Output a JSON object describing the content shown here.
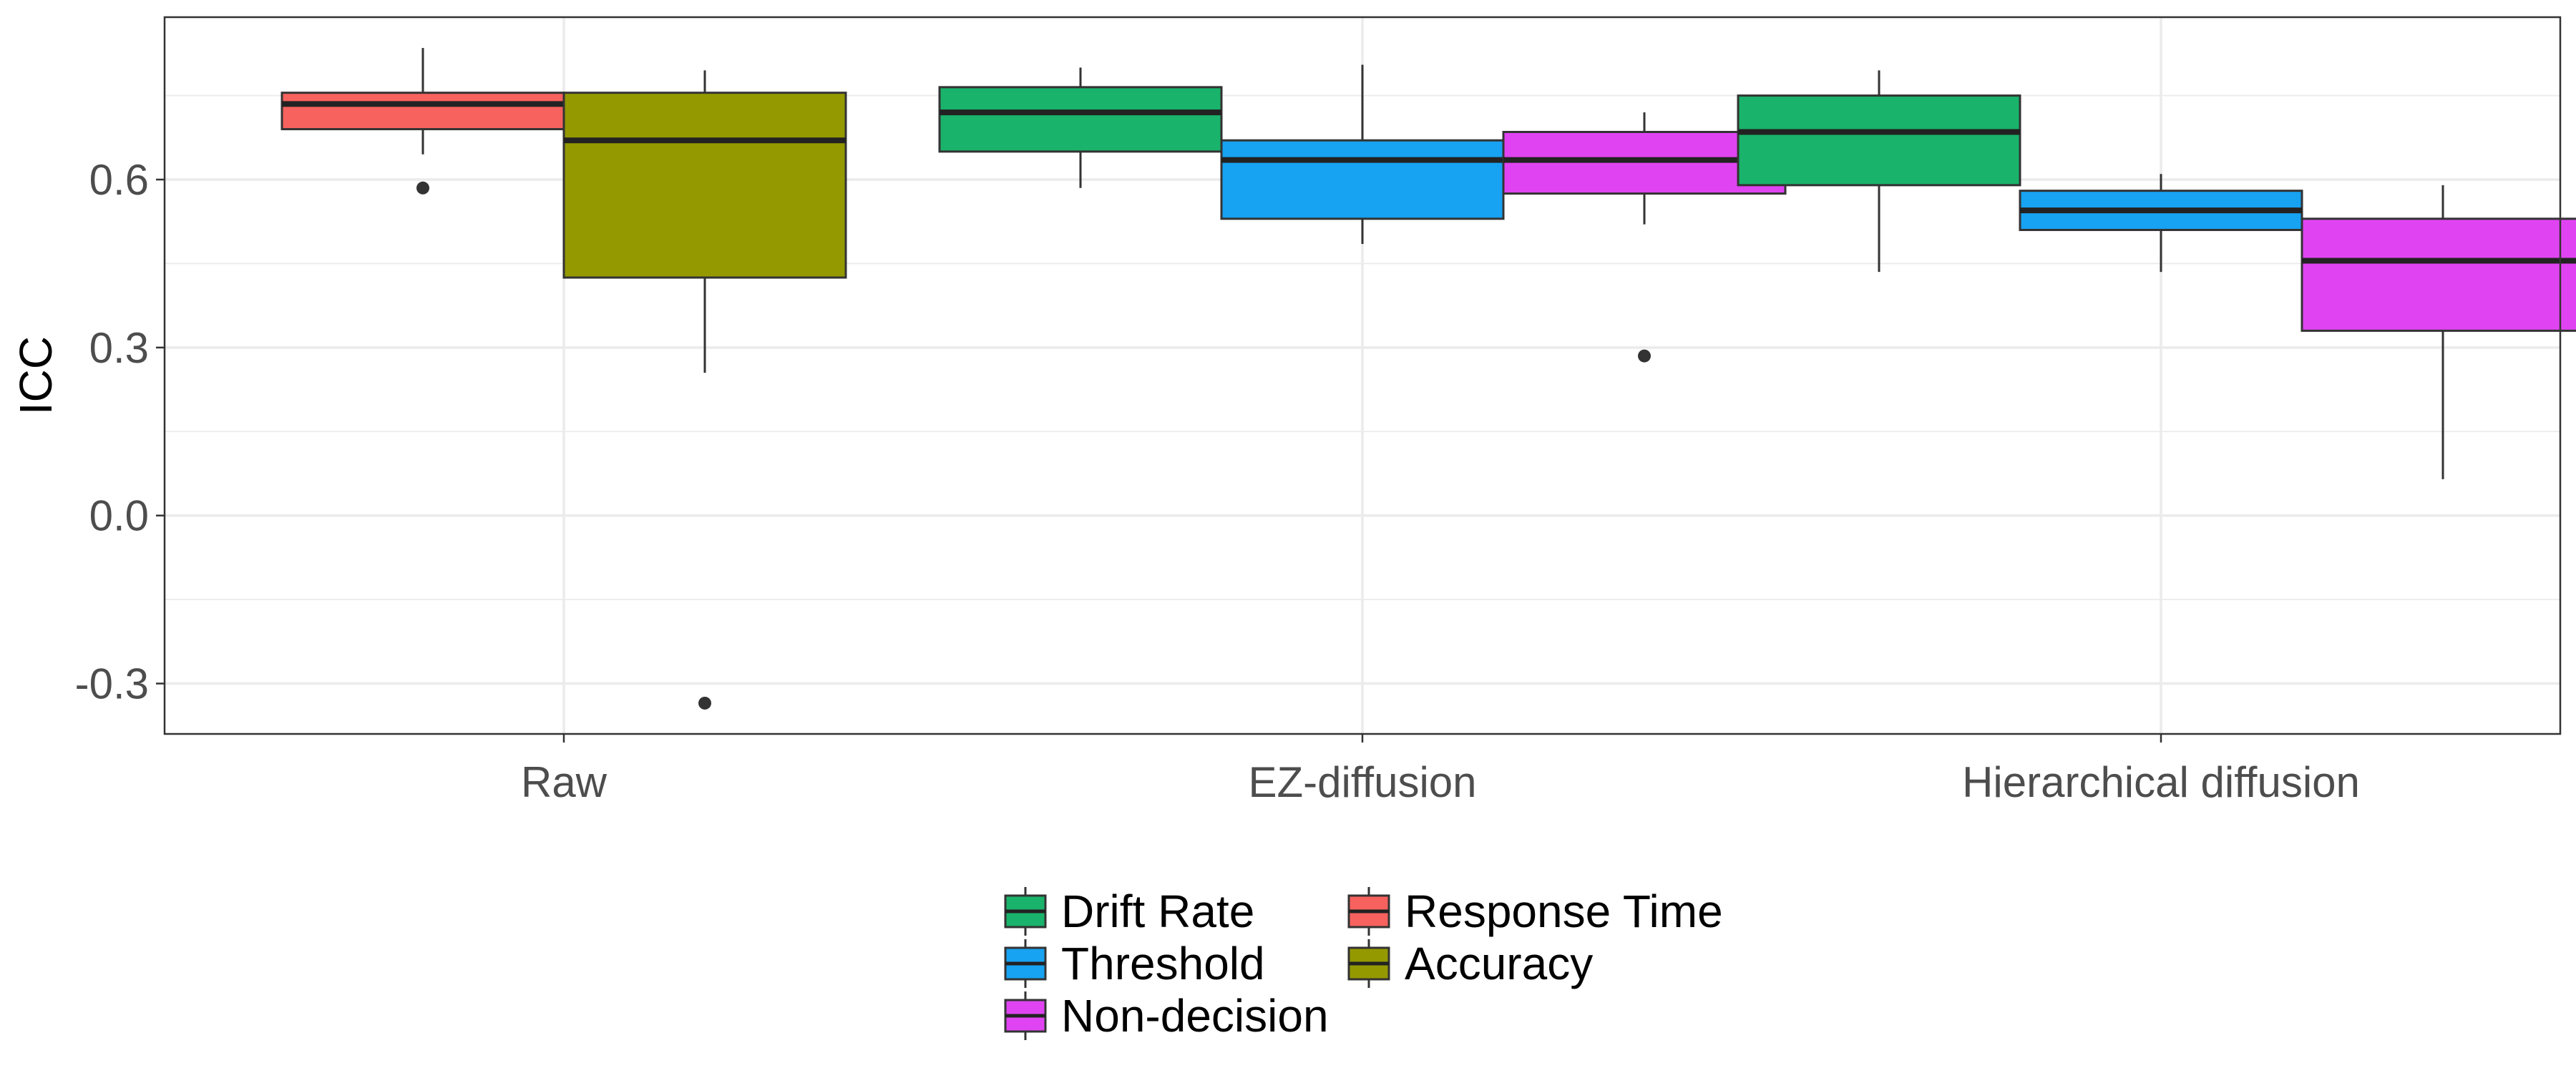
{
  "chart_data": {
    "type": "boxplot",
    "title": "",
    "xlabel": "",
    "ylabel": "ICC",
    "ylim": [
      -0.39,
      0.89
    ],
    "yticks": [
      -0.3,
      0.0,
      0.3,
      0.6
    ],
    "ytick_labels": [
      "-0.3",
      "0.0",
      "0.3",
      "0.6"
    ],
    "grid": true,
    "legend_position": "bottom",
    "categories": [
      "Raw",
      "EZ-diffusion",
      "Hierarchical diffusion"
    ],
    "series": [
      {
        "name": "Drift Rate",
        "color": "#1ab36b"
      },
      {
        "name": "Threshold",
        "color": "#17a2f2"
      },
      {
        "name": "Non-decision",
        "color": "#e044f2"
      },
      {
        "name": "Response Time",
        "color": "#f7625e"
      },
      {
        "name": "Accuracy",
        "color": "#949900"
      }
    ],
    "legend_rows": [
      [
        "Drift Rate",
        "Response Time"
      ],
      [
        "Threshold",
        "Accuracy"
      ],
      [
        "Non-decision"
      ]
    ],
    "boxes": [
      {
        "category": "Raw",
        "series": "Response Time",
        "whisker_low": 0.645,
        "q1": 0.69,
        "median": 0.735,
        "q3": 0.755,
        "whisker_high": 0.835,
        "outliers": [
          0.585
        ]
      },
      {
        "category": "Raw",
        "series": "Accuracy",
        "whisker_low": 0.255,
        "q1": 0.425,
        "median": 0.67,
        "q3": 0.755,
        "whisker_high": 0.795,
        "outliers": [
          -0.335
        ]
      },
      {
        "category": "EZ-diffusion",
        "series": "Drift Rate",
        "whisker_low": 0.585,
        "q1": 0.65,
        "median": 0.72,
        "q3": 0.765,
        "whisker_high": 0.8,
        "outliers": []
      },
      {
        "category": "EZ-diffusion",
        "series": "Threshold",
        "whisker_low": 0.485,
        "q1": 0.53,
        "median": 0.635,
        "q3": 0.67,
        "whisker_high": 0.805,
        "outliers": []
      },
      {
        "category": "EZ-diffusion",
        "series": "Non-decision",
        "whisker_low": 0.52,
        "q1": 0.575,
        "median": 0.635,
        "q3": 0.685,
        "whisker_high": 0.72,
        "outliers": [
          0.285
        ]
      },
      {
        "category": "Hierarchical diffusion",
        "series": "Drift Rate",
        "whisker_low": 0.435,
        "q1": 0.59,
        "median": 0.685,
        "q3": 0.75,
        "whisker_high": 0.795,
        "outliers": []
      },
      {
        "category": "Hierarchical diffusion",
        "series": "Threshold",
        "whisker_low": 0.435,
        "q1": 0.51,
        "median": 0.545,
        "q3": 0.58,
        "whisker_high": 0.61,
        "outliers": []
      },
      {
        "category": "Hierarchical diffusion",
        "series": "Non-decision",
        "whisker_low": 0.065,
        "q1": 0.33,
        "median": 0.455,
        "q3": 0.53,
        "whisker_high": 0.59,
        "outliers": []
      }
    ]
  }
}
